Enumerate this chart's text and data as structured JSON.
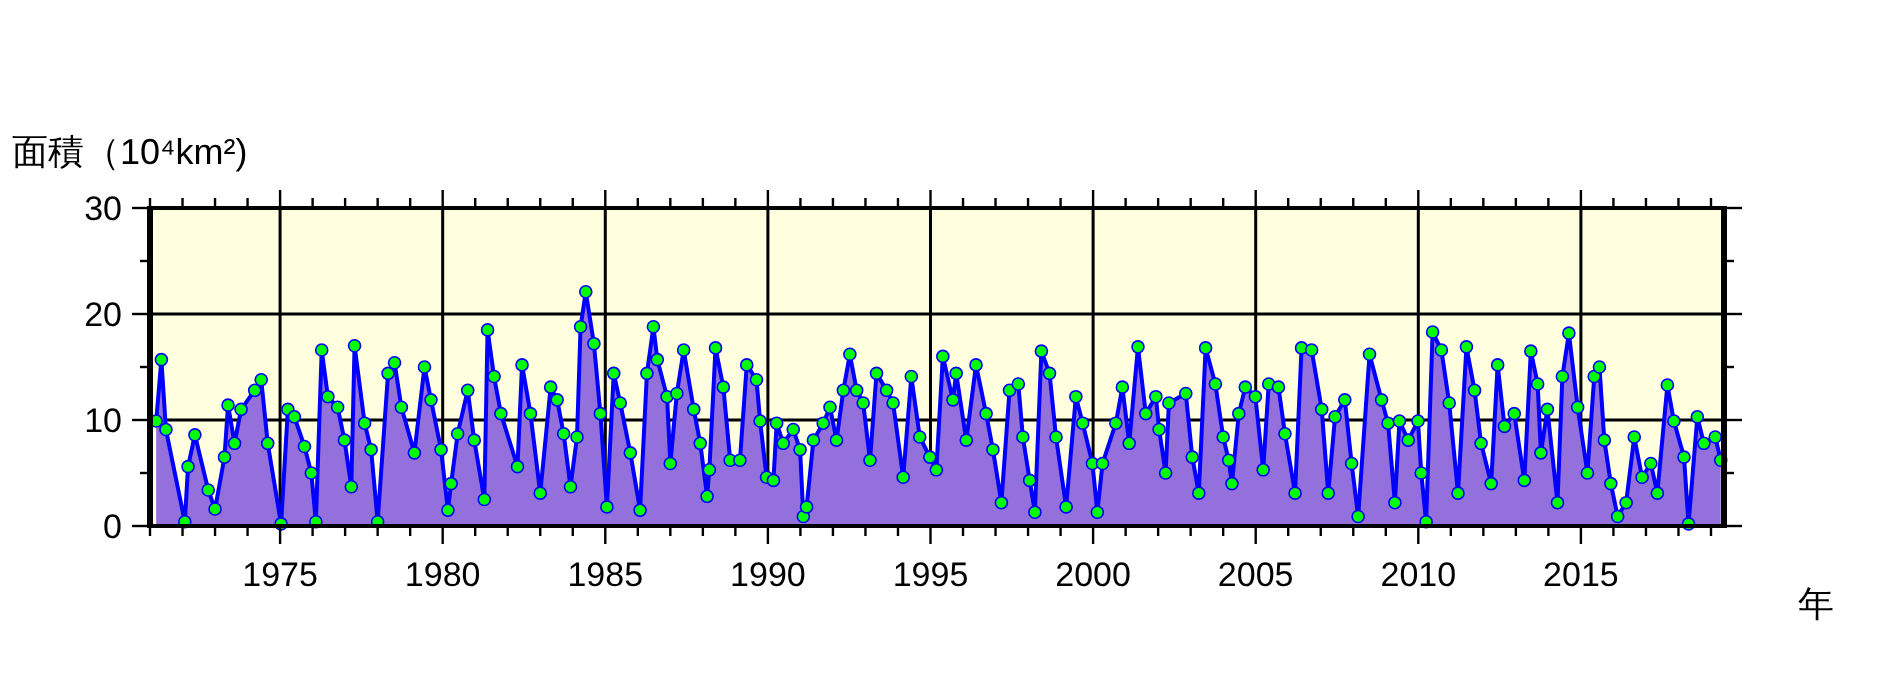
{
  "chart_data": {
    "type": "area",
    "ylabel": "面積（10⁴km²)",
    "xlabel": "年",
    "xlim": [
      1971,
      2019.4
    ],
    "ylim": [
      0,
      30
    ],
    "xticks": [
      {
        "value": 1971,
        "label": null
      },
      {
        "value": 1972,
        "label": null
      },
      {
        "value": 1973,
        "label": null
      },
      {
        "value": 1974,
        "label": null
      },
      1975,
      {
        "value": 1976,
        "label": null
      },
      {
        "value": 1977,
        "label": null
      },
      {
        "value": 1978,
        "label": null
      },
      {
        "value": 1979,
        "label": null
      },
      1980,
      {
        "value": 1981,
        "label": null
      },
      {
        "value": 1982,
        "label": null
      },
      {
        "value": 1983,
        "label": null
      },
      {
        "value": 1984,
        "label": null
      },
      1985,
      {
        "value": 1986,
        "label": null
      },
      {
        "value": 1987,
        "label": null
      },
      {
        "value": 1988,
        "label": null
      },
      {
        "value": 1989,
        "label": null
      },
      1990,
      {
        "value": 1991,
        "label": null
      },
      {
        "value": 1992,
        "label": null
      },
      {
        "value": 1993,
        "label": null
      },
      {
        "value": 1994,
        "label": null
      },
      1995,
      {
        "value": 1996,
        "label": null
      },
      {
        "value": 1997,
        "label": null
      },
      {
        "value": 1998,
        "label": null
      },
      {
        "value": 1999,
        "label": null
      },
      2000,
      {
        "value": 2001,
        "label": null
      },
      {
        "value": 2002,
        "label": null
      },
      {
        "value": 2003,
        "label": null
      },
      {
        "value": 2004,
        "label": null
      },
      2005,
      {
        "value": 2006,
        "label": null
      },
      {
        "value": 2007,
        "label": null
      },
      {
        "value": 2008,
        "label": null
      },
      {
        "value": 2009,
        "label": null
      },
      2010,
      {
        "value": 2011,
        "label": null
      },
      {
        "value": 2012,
        "label": null
      },
      {
        "value": 2013,
        "label": null
      },
      {
        "value": 2014,
        "label": null
      },
      2015,
      {
        "value": 2016,
        "label": null
      },
      {
        "value": 2017,
        "label": null
      },
      {
        "value": 2018,
        "label": null
      },
      {
        "value": 2019,
        "label": null
      }
    ],
    "yticks": [
      0,
      {
        "value": 5,
        "label": null
      },
      10,
      {
        "value": 15,
        "label": null
      },
      20,
      {
        "value": 25,
        "label": null
      },
      30
    ],
    "grid": true,
    "marker": "circle",
    "x": [
      1971.19,
      1971.35,
      1971.49,
      1972.07,
      1972.17,
      1972.38,
      1972.79,
      1973.0,
      1973.29,
      1973.4,
      1973.6,
      1973.8,
      1974.22,
      1974.42,
      1974.62,
      1975.03,
      1975.24,
      1975.44,
      1975.75,
      1975.96,
      1976.1,
      1976.28,
      1976.47,
      1976.77,
      1976.98,
      1977.19,
      1977.29,
      1977.6,
      1977.8,
      1978.0,
      1978.32,
      1978.52,
      1978.73,
      1979.13,
      1979.44,
      1979.64,
      1979.95,
      1980.16,
      1980.26,
      1980.46,
      1980.77,
      1980.97,
      1981.28,
      1981.38,
      1981.58,
      1981.79,
      1982.3,
      1982.44,
      1982.7,
      1983.0,
      1983.32,
      1983.52,
      1983.72,
      1983.93,
      1984.13,
      1984.24,
      1984.4,
      1984.65,
      1984.85,
      1985.05,
      1985.26,
      1985.46,
      1985.77,
      1986.07,
      1986.28,
      1986.48,
      1986.6,
      1986.9,
      1987.0,
      1987.2,
      1987.41,
      1987.72,
      1987.92,
      1988.13,
      1988.2,
      1988.39,
      1988.63,
      1988.84,
      1989.14,
      1989.35,
      1989.65,
      1989.76,
      1989.96,
      1990.17,
      1990.27,
      1990.47,
      1990.78,
      1990.99,
      1991.09,
      1991.19,
      1991.4,
      1991.7,
      1991.91,
      1992.11,
      1992.32,
      1992.52,
      1992.73,
      1992.93,
      1993.14,
      1993.34,
      1993.65,
      1993.85,
      1994.16,
      1994.41,
      1994.67,
      1994.98,
      1995.18,
      1995.38,
      1995.69,
      1995.79,
      1996.1,
      1996.4,
      1996.71,
      1996.92,
      1997.18,
      1997.43,
      1997.7,
      1997.84,
      1998.05,
      1998.21,
      1998.41,
      1998.66,
      1998.86,
      1999.17,
      1999.47,
      1999.68,
      1999.98,
      2000.13,
      2000.29,
      2000.7,
      2000.9,
      2001.11,
      2001.38,
      2001.62,
      2001.93,
      2002.03,
      2002.23,
      2002.33,
      2002.85,
      2003.05,
      2003.25,
      2003.46,
      2003.76,
      2004.0,
      2004.17,
      2004.27,
      2004.48,
      2004.68,
      2004.99,
      2005.23,
      2005.4,
      2005.7,
      2005.9,
      2006.21,
      2006.41,
      2006.72,
      2007.03,
      2007.23,
      2007.44,
      2007.74,
      2007.95,
      2008.15,
      2008.5,
      2008.87,
      2009.07,
      2009.28,
      2009.42,
      2009.69,
      2009.99,
      2010.09,
      2010.24,
      2010.44,
      2010.71,
      2010.95,
      2011.22,
      2011.48,
      2011.73,
      2011.93,
      2012.24,
      2012.44,
      2012.65,
      2012.95,
      2013.26,
      2013.46,
      2013.67,
      2013.77,
      2013.97,
      2014.28,
      2014.43,
      2014.63,
      2014.9,
      2015.2,
      2015.41,
      2015.57,
      2015.72,
      2015.92,
      2016.13,
      2016.39,
      2016.64,
      2016.88,
      2017.15,
      2017.35,
      2017.66,
      2017.86,
      2018.17,
      2018.31,
      2018.58,
      2018.78,
      2019.13,
      2019.3
    ],
    "series": [
      {
        "color": "#9370db",
        "values": [
          9.9,
          15.7,
          9.1,
          0.4,
          5.6,
          8.6,
          3.4,
          1.6,
          6.5,
          11.4,
          7.8,
          11.0,
          12.8,
          13.8,
          7.8,
          0.2,
          11.0,
          10.3,
          7.5,
          5.0,
          0.4,
          16.6,
          12.2,
          11.2,
          8.1,
          3.7,
          17.0,
          9.7,
          7.2,
          0.4,
          14.4,
          15.4,
          11.2,
          6.9,
          15.0,
          11.9,
          7.2,
          1.5,
          4.0,
          8.7,
          12.8,
          8.1,
          2.5,
          18.5,
          14.1,
          10.6,
          5.6,
          15.2,
          10.6,
          3.1,
          13.1,
          11.9,
          8.7,
          3.7,
          8.4,
          18.8,
          22.1,
          17.2,
          10.6,
          1.8,
          14.4,
          11.6,
          6.9,
          1.5,
          14.4,
          18.8,
          15.7,
          12.2,
          5.9,
          12.5,
          16.6,
          11.0,
          7.8,
          2.8,
          5.3,
          16.8,
          13.1,
          6.2,
          6.2,
          15.2,
          13.8,
          9.9,
          4.6,
          4.3,
          9.7,
          7.8,
          9.1,
          7.2,
          0.9,
          1.8,
          8.1,
          9.7,
          11.2,
          8.1,
          12.8,
          16.2,
          12.8,
          11.6,
          6.2,
          14.4,
          12.8,
          11.6,
          4.6,
          14.1,
          8.4,
          6.5,
          5.3,
          16.0,
          11.9,
          14.4,
          8.1,
          15.2,
          10.6,
          7.2,
          2.2,
          12.8,
          13.4,
          8.4,
          4.3,
          1.3,
          16.5,
          14.4,
          8.4,
          1.8,
          12.2,
          9.7,
          5.9,
          1.3,
          5.9,
          9.7,
          13.1,
          7.8,
          16.9,
          10.6,
          12.2,
          9.1,
          5.0,
          11.6,
          12.5,
          6.5,
          3.1,
          16.8,
          13.4,
          8.4,
          6.2,
          4.0,
          10.6,
          13.1,
          12.2,
          5.3,
          13.4,
          13.1,
          8.7,
          3.1,
          16.8,
          16.6,
          11.0,
          3.1,
          10.3,
          11.9,
          5.9,
          0.9,
          16.2,
          11.9,
          9.7,
          2.2,
          9.9,
          8.1,
          9.9,
          5.0,
          0.4,
          18.3,
          16.6,
          11.6,
          3.1,
          16.9,
          12.8,
          7.8,
          4.0,
          15.2,
          9.4,
          10.6,
          4.3,
          16.5,
          13.4,
          6.9,
          11.0,
          2.2,
          14.1,
          18.2,
          11.2,
          5.0,
          14.1,
          15.0,
          8.1,
          4.0,
          0.9,
          2.2,
          8.4,
          4.6,
          5.9,
          3.1,
          13.3,
          9.9,
          6.5,
          0.2,
          10.3,
          7.8,
          8.4,
          6.2
        ]
      }
    ]
  }
}
